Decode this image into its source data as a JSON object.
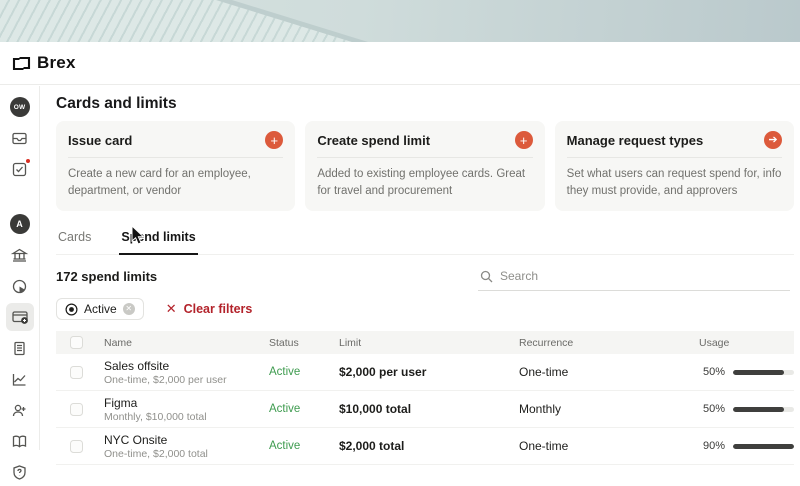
{
  "brand": {
    "name": "Brex"
  },
  "page": {
    "title": "Cards and limits"
  },
  "action_cards": [
    {
      "title": "Issue card",
      "icon": "plus-icon",
      "description": "Create a new card for an employee, department, or vendor"
    },
    {
      "title": "Create spend limit",
      "icon": "plus-icon",
      "description": "Added to existing employee cards. Great for travel and procurement"
    },
    {
      "title": "Manage request types",
      "icon": "arrow-right-icon",
      "description": "Set what users can request spend for, info they must provide, and approvers"
    }
  ],
  "tabs": [
    {
      "label": "Cards",
      "active": false
    },
    {
      "label": "Spend limits",
      "active": true
    }
  ],
  "summary": {
    "count_label": "172 spend limits"
  },
  "filters": {
    "active_chip_label": "Active",
    "clear_label": "Clear filters"
  },
  "search": {
    "placeholder": "Search"
  },
  "table": {
    "headers": {
      "name": "Name",
      "status": "Status",
      "limit": "Limit",
      "recurrence": "Recurrence",
      "usage": "Usage"
    },
    "rows": [
      {
        "name": "Sales offsite",
        "subtitle": "One-time, $2,000 per user",
        "status": "Active",
        "limit": "$2,000 per user",
        "recurrence": "One-time",
        "usage_pct": "50%",
        "usage_value": 50
      },
      {
        "name": "Figma",
        "subtitle": "Monthly, $10,000 total",
        "status": "Active",
        "limit": "$10,000 total",
        "recurrence": "Monthly",
        "usage_pct": "50%",
        "usage_value": 50
      },
      {
        "name": "NYC Onsite",
        "subtitle": "One-time, $2,000 total",
        "status": "Active",
        "limit": "$2,000 total",
        "recurrence": "One-time",
        "usage_pct": "90%",
        "usage_value": 90
      }
    ]
  },
  "sidebar": {
    "items": [
      {
        "icon": "avatar-ow",
        "initials": "OW"
      },
      {
        "icon": "inbox-icon"
      },
      {
        "icon": "tasks-icon",
        "badge": true
      },
      {
        "icon": "avatar-a",
        "initials": "A"
      },
      {
        "icon": "bank-icon"
      },
      {
        "icon": "insights-icon"
      },
      {
        "icon": "card-icon",
        "selected": true
      },
      {
        "icon": "bills-icon"
      },
      {
        "icon": "reporting-icon"
      },
      {
        "icon": "team-icon"
      },
      {
        "icon": "resources-icon"
      },
      {
        "icon": "support-icon"
      }
    ]
  },
  "colors": {
    "accent_orange": "#dc5a3b",
    "status_green": "#3e9b4f",
    "danger_red": "#b3232b",
    "bar_fill": "#3f3f3d",
    "banner_teal": "#cfdcdb"
  }
}
